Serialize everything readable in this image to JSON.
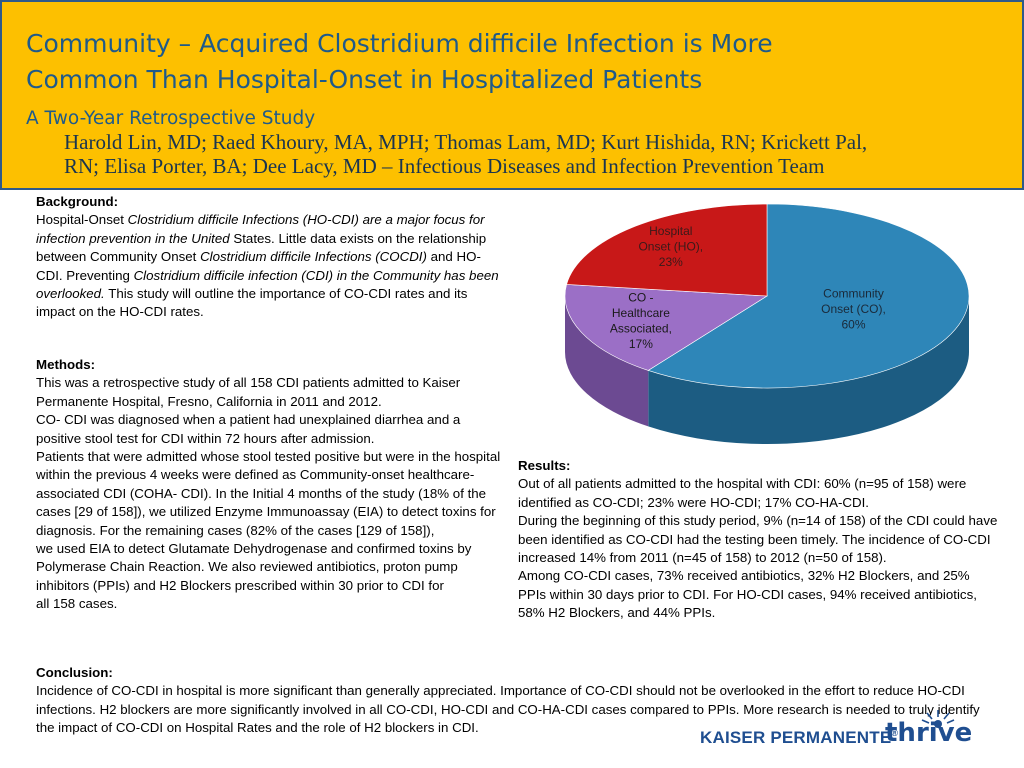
{
  "header": {
    "title_line1": "Community – Acquired Clostridium difficile Infection is More",
    "title_line2": "Common Than Hospital-Onset in Hospitalized Patients",
    "subtitle": "A Two-Year Retrospective Study",
    "authors_line1": "Harold Lin, MD; Raed Khoury, MA, MPH; Thomas Lam, MD; Kurt Hishida, RN; Krickett Pal,",
    "authors_line2": "RN; Elisa Porter, BA; Dee Lacy, MD – Infectious Diseases and Infection Prevention Team"
  },
  "background": {
    "heading": "Background:",
    "p1": "Hospital-Onset ",
    "p2": "Clostridium difficile Infections (HO-CDI) are a major focus for infection prevention in the United",
    "p3": " States. Little data exists on the relationship between Community Onset ",
    "p4": "Clostridium difficile Infections (COCDI)",
    "p5": " and HO-CDI. Preventing ",
    "p6": "Clostridium difficile infection (CDI) in the Community has been overlooked.",
    "p7": " This study will outline the importance of CO-CDI rates and its impact on the HO-CDI rates."
  },
  "methods": {
    "heading": "Methods:",
    "line1": "This was a retrospective study of all 158 CDI patients admitted to Kaiser Permanente Hospital, Fresno, California in 2011 and 2012.",
    "line2": "CO- CDI was diagnosed when a patient had unexplained diarrhea and a positive stool test for CDI within 72 hours after admission.",
    "line3": "Patients that were admitted whose stool tested positive but were in the hospital within the previous 4 weeks were defined as Community-onset healthcare-associated CDI (COHA- CDI). In the Initial 4 months of the study (18% of the cases [29 of 158]), we utilized Enzyme Immunoassay (EIA) to detect toxins for diagnosis. For the remaining cases (82% of the cases [129 of 158]),",
    "line4": "we used EIA to detect Glutamate Dehydrogenase and confirmed toxins by Polymerase Chain Reaction. We also reviewed antibiotics, proton pump inhibitors (PPIs) and H2 Blockers prescribed within 30 prior to CDI for",
    "line5": "all 158 cases."
  },
  "results": {
    "heading": "Results:",
    "line1": "Out of all patients admitted to the hospital with CDI: 60% (n=95 of 158) were identified as CO-CDI; 23% were HO-CDI; 17% CO-HA-CDI.",
    "line2": "During the beginning of this study period, 9% (n=14 of 158) of the CDI could have",
    "line3": "been identified as CO-CDI had the testing been timely. The incidence of CO-CDI increased 14% from 2011 (n=45 of 158) to 2012 (n=50 of 158).",
    "line4": "Among CO-CDI cases, 73% received antibiotics, 32% H2 Blockers, and 25% PPIs within 30 days prior to CDI. For HO-CDI cases, 94% received antibiotics, 58% H2 Blockers, and 44% PPIs."
  },
  "conclusion": {
    "heading": "Conclusion:",
    "text": "Incidence of CO-CDI in hospital is more significant than generally appreciated. Importance of CO-CDI should not be overlooked in the effort to reduce HO-CDI infections. H2 blockers are more significantly involved in all CO-CDI, HO-CDI and CO-HA-CDI cases compared to PPIs. More research is needed to truly identify the impact of CO-CDI on Hospital Rates and the role of H2 blockers in CDI."
  },
  "logos": {
    "kaiser": "KAISER PERMANENTE",
    "reg": "®",
    "thrive": "thrive"
  },
  "chart_data": {
    "type": "pie",
    "slices": [
      {
        "label_lines": [
          "Community",
          "Onset (CO),",
          "60%"
        ],
        "value": 60,
        "color": "#2e86b8",
        "side": "#1c5c82",
        "text_color": "#1a2a3a"
      },
      {
        "label_lines": [
          "CO -",
          "Healthcare",
          "Associated,",
          "17%"
        ],
        "value": 17,
        "color": "#9b6fc6",
        "side": "#6c4a92",
        "text_color": "#1a1a1a"
      },
      {
        "label_lines": [
          "Hospital",
          "Onset (HO),",
          "23%"
        ],
        "value": 23,
        "color": "#c81818",
        "side": "#8c0e0e",
        "text_color": "#3a1a1a"
      }
    ],
    "three_d": true
  }
}
